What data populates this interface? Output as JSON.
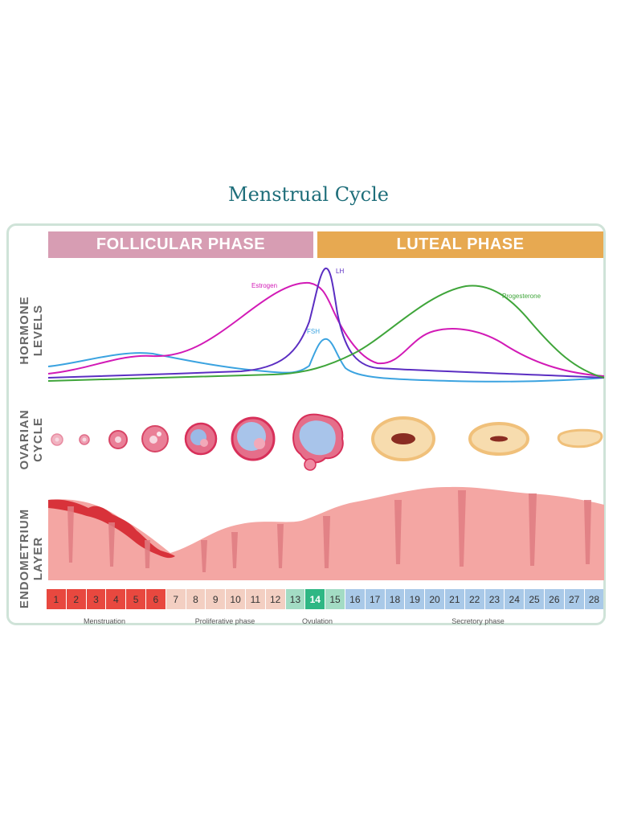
{
  "title": "Menstrual Cycle",
  "phases": {
    "follicular": "FOLLICULAR PHASE",
    "luteal": "LUTEAL PHASE"
  },
  "row_labels": {
    "hormone_line1": "HORMONE",
    "hormone_line2": "LEVELS",
    "ovarian_line1": "OVARIAN",
    "ovarian_line2": "CYCLE",
    "endometrium_line1": "ENDOMETRIUM",
    "endometrium_line2": "LAYER"
  },
  "hormones": {
    "estrogen": {
      "label": "Estrogen",
      "color": "#d21ab6"
    },
    "lh": {
      "label": "LH",
      "color": "#5b2ec2"
    },
    "fsh": {
      "label": "FSH",
      "color": "#3ba3e0"
    },
    "progesterone": {
      "label": "Progesterone",
      "color": "#3fa53a"
    }
  },
  "days": [
    {
      "n": "1",
      "phase": "menstruation"
    },
    {
      "n": "2",
      "phase": "menstruation"
    },
    {
      "n": "3",
      "phase": "menstruation"
    },
    {
      "n": "4",
      "phase": "menstruation"
    },
    {
      "n": "5",
      "phase": "menstruation"
    },
    {
      "n": "6",
      "phase": "menstruation"
    },
    {
      "n": "7",
      "phase": "proliferative"
    },
    {
      "n": "8",
      "phase": "proliferative"
    },
    {
      "n": "9",
      "phase": "proliferative"
    },
    {
      "n": "10",
      "phase": "proliferative"
    },
    {
      "n": "11",
      "phase": "proliferative"
    },
    {
      "n": "12",
      "phase": "proliferative"
    },
    {
      "n": "13",
      "phase": "ovulation"
    },
    {
      "n": "14",
      "phase": "ovulation-peak"
    },
    {
      "n": "15",
      "phase": "ovulation"
    },
    {
      "n": "16",
      "phase": "secretory"
    },
    {
      "n": "17",
      "phase": "secretory"
    },
    {
      "n": "18",
      "phase": "secretory"
    },
    {
      "n": "19",
      "phase": "secretory"
    },
    {
      "n": "20",
      "phase": "secretory"
    },
    {
      "n": "21",
      "phase": "secretory"
    },
    {
      "n": "22",
      "phase": "secretory"
    },
    {
      "n": "23",
      "phase": "secretory"
    },
    {
      "n": "24",
      "phase": "secretory"
    },
    {
      "n": "25",
      "phase": "secretory"
    },
    {
      "n": "26",
      "phase": "secretory"
    },
    {
      "n": "27",
      "phase": "secretory"
    },
    {
      "n": "28",
      "phase": "secretory"
    }
  ],
  "day_colors": {
    "menstruation": "#e8483f",
    "proliferative": "#f3cfc2",
    "ovulation": "#a3dcc4",
    "ovulation-peak": "#2fb784",
    "secretory": "#a9c9e8"
  },
  "cycle_phases": {
    "menstruation": "Menstruation",
    "proliferative": "Proliferative phase",
    "ovulation": "Ovulation",
    "secretory": "Secretory phase"
  }
}
